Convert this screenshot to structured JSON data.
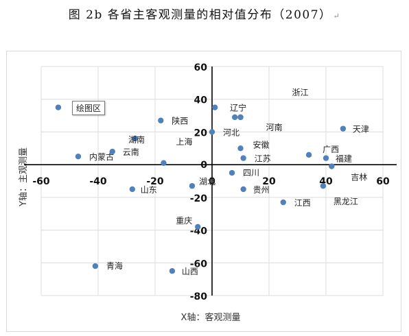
{
  "title": "图 2b 各省主客观测量的相对值分布（2007）",
  "title_mark": "↵",
  "tooltip": "绘图区",
  "chart_data": {
    "type": "scatter",
    "title": "图 2b 各省主客观测量的相对值分布（2007）",
    "xlabel": "X轴：客观测量",
    "ylabel": "Y轴：主观测量",
    "xlim": [
      -60,
      60
    ],
    "ylim": [
      -80,
      60
    ],
    "xticks": [
      -60,
      -40,
      -20,
      0,
      20,
      40,
      60
    ],
    "yticks": [
      60,
      40,
      20,
      0,
      -20,
      -40,
      -60,
      -80
    ],
    "grid": true,
    "marker_color": "#4f81bd",
    "points": [
      {
        "label": "浙江",
        "x": 10,
        "y": 29
      },
      {
        "label": "辽宁",
        "x": 1,
        "y": 35
      },
      {
        "label": "",
        "x": 8,
        "y": 29
      },
      {
        "label": "河南",
        "x": 10,
        "y": 29
      },
      {
        "label": "陕西",
        "x": -18,
        "y": 27
      },
      {
        "label": "天津",
        "x": 46,
        "y": 22
      },
      {
        "label": "河北",
        "x": 0,
        "y": 20
      },
      {
        "label": "湖南",
        "x": -27,
        "y": 16
      },
      {
        "label": "安徽",
        "x": 10,
        "y": 10
      },
      {
        "label": "上海",
        "x": -17,
        "y": 1
      },
      {
        "label": "云南",
        "x": -35,
        "y": 8
      },
      {
        "label": "内蒙古",
        "x": -47,
        "y": 5
      },
      {
        "label": "广西",
        "x": 34,
        "y": 6
      },
      {
        "label": "福建",
        "x": 40,
        "y": 4
      },
      {
        "label": "江苏",
        "x": 11,
        "y": 4
      },
      {
        "label": "吉林",
        "x": 42,
        "y": -1
      },
      {
        "label": "四川",
        "x": 7,
        "y": -5
      },
      {
        "label": "湖北",
        "x": -7,
        "y": -13
      },
      {
        "label": "黑龙江",
        "x": 39,
        "y": -13
      },
      {
        "label": "贵州",
        "x": 11,
        "y": -15
      },
      {
        "label": "山东",
        "x": -28,
        "y": -15
      },
      {
        "label": "江西",
        "x": 25,
        "y": -23
      },
      {
        "label": "重庆",
        "x": -5,
        "y": -38
      },
      {
        "label": "青海",
        "x": -41,
        "y": -62
      },
      {
        "label": "山西",
        "x": -14,
        "y": -65
      },
      {
        "label": "",
        "x": -54,
        "y": 35
      }
    ]
  }
}
